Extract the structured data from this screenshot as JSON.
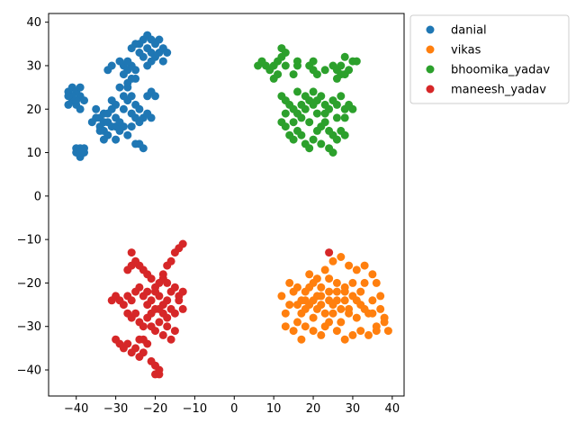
{
  "chart_data": {
    "type": "scatter",
    "title": "",
    "xlabel": "",
    "ylabel": "",
    "xlim": [
      -47,
      43
    ],
    "ylim": [
      -46,
      42
    ],
    "xticks": [
      -40,
      -30,
      -20,
      -10,
      0,
      10,
      20,
      30,
      40
    ],
    "yticks": [
      -40,
      -30,
      -20,
      -10,
      0,
      10,
      20,
      30,
      40
    ],
    "grid": false,
    "legend_position": "outside-top-right",
    "series": [
      {
        "name": "danial",
        "color": "#1f77b4",
        "points": [
          [
            -42,
            24
          ],
          [
            -41,
            22
          ],
          [
            -40,
            21
          ],
          [
            -39,
            23
          ],
          [
            -41,
            25
          ],
          [
            -40,
            24
          ],
          [
            -42,
            21
          ],
          [
            -39,
            20
          ],
          [
            -40,
            22
          ],
          [
            -41,
            23
          ],
          [
            -39,
            25
          ],
          [
            -38,
            22
          ],
          [
            -42,
            23
          ],
          [
            -40,
            10
          ],
          [
            -39,
            11
          ],
          [
            -38,
            10
          ],
          [
            -39,
            9
          ],
          [
            -40,
            11
          ],
          [
            -38,
            11
          ],
          [
            -39,
            10
          ],
          [
            -36,
            17
          ],
          [
            -35,
            18
          ],
          [
            -34,
            16
          ],
          [
            -33,
            15
          ],
          [
            -35,
            20
          ],
          [
            -34,
            18
          ],
          [
            -32,
            14
          ],
          [
            -31,
            16
          ],
          [
            -33,
            17
          ],
          [
            -30,
            18
          ],
          [
            -29,
            15
          ],
          [
            -31,
            20
          ],
          [
            -33,
            19
          ],
          [
            -34,
            15
          ],
          [
            -32,
            17
          ],
          [
            -30,
            16
          ],
          [
            -32,
            19
          ],
          [
            -29,
            17
          ],
          [
            -31,
            22
          ],
          [
            -30,
            21
          ],
          [
            -28,
            20
          ],
          [
            -27,
            22
          ],
          [
            -26,
            23
          ],
          [
            -25,
            21
          ],
          [
            -28,
            23
          ],
          [
            -29,
            25
          ],
          [
            -27,
            25
          ],
          [
            -26,
            19
          ],
          [
            -25,
            18
          ],
          [
            -24,
            17
          ],
          [
            -23,
            18
          ],
          [
            -22,
            19
          ],
          [
            -24,
            20
          ],
          [
            -21,
            18
          ],
          [
            -22,
            23
          ],
          [
            -21,
            24
          ],
          [
            -20,
            23
          ],
          [
            -28,
            30
          ],
          [
            -27,
            29
          ],
          [
            -26,
            30
          ],
          [
            -25,
            29
          ],
          [
            -27,
            31
          ],
          [
            -28,
            28
          ],
          [
            -26,
            27
          ],
          [
            -25,
            27
          ],
          [
            -27,
            26
          ],
          [
            -32,
            29
          ],
          [
            -31,
            30
          ],
          [
            -29,
            31
          ],
          [
            -24,
            35
          ],
          [
            -23,
            36
          ],
          [
            -22,
            34
          ],
          [
            -21,
            33
          ],
          [
            -20,
            35
          ],
          [
            -19,
            33
          ],
          [
            -18,
            34
          ],
          [
            -17,
            33
          ],
          [
            -22,
            37
          ],
          [
            -21,
            36
          ],
          [
            -20,
            32
          ],
          [
            -19,
            36
          ],
          [
            -18,
            31
          ],
          [
            -24,
            33
          ],
          [
            -23,
            32
          ],
          [
            -25,
            35
          ],
          [
            -26,
            34
          ],
          [
            -22,
            30
          ],
          [
            -21,
            31
          ],
          [
            -24,
            12
          ],
          [
            -23,
            11
          ],
          [
            -25,
            12
          ],
          [
            -27,
            14
          ],
          [
            -28,
            16
          ],
          [
            -26,
            16
          ],
          [
            -30,
            13
          ],
          [
            -33,
            13
          ]
        ]
      },
      {
        "name": "vikas",
        "color": "#ff7f0e",
        "points": [
          [
            12,
            -23
          ],
          [
            13,
            -27
          ],
          [
            14,
            -25
          ],
          [
            15,
            -22
          ],
          [
            16,
            -29
          ],
          [
            17,
            -24
          ],
          [
            18,
            -26
          ],
          [
            19,
            -21
          ],
          [
            20,
            -28
          ],
          [
            21,
            -23
          ],
          [
            22,
            -25
          ],
          [
            23,
            -30
          ],
          [
            24,
            -22
          ],
          [
            25,
            -27
          ],
          [
            26,
            -24
          ],
          [
            27,
            -29
          ],
          [
            28,
            -21
          ],
          [
            29,
            -26
          ],
          [
            30,
            -23
          ],
          [
            31,
            -28
          ],
          [
            32,
            -25
          ],
          [
            33,
            -20
          ],
          [
            34,
            -27
          ],
          [
            35,
            -24
          ],
          [
            36,
            -30
          ],
          [
            37,
            -26
          ],
          [
            38,
            -29
          ],
          [
            39,
            -31
          ],
          [
            15,
            -31
          ],
          [
            17,
            -33
          ],
          [
            19,
            -18
          ],
          [
            21,
            -19
          ],
          [
            23,
            -17
          ],
          [
            25,
            -15
          ],
          [
            27,
            -14
          ],
          [
            29,
            -16
          ],
          [
            31,
            -17
          ],
          [
            33,
            -16
          ],
          [
            35,
            -18
          ],
          [
            36,
            -20
          ],
          [
            18,
            -30
          ],
          [
            20,
            -31
          ],
          [
            22,
            -32
          ],
          [
            24,
            -29
          ],
          [
            26,
            -31
          ],
          [
            28,
            -33
          ],
          [
            30,
            -32
          ],
          [
            32,
            -31
          ],
          [
            34,
            -32
          ],
          [
            36,
            -31
          ],
          [
            14,
            -20
          ],
          [
            16,
            -21
          ],
          [
            18,
            -22
          ],
          [
            20,
            -20
          ],
          [
            22,
            -21
          ],
          [
            24,
            -19
          ],
          [
            26,
            -20
          ],
          [
            28,
            -22
          ],
          [
            30,
            -20
          ],
          [
            32,
            -22
          ],
          [
            17,
            -27
          ],
          [
            19,
            -25
          ],
          [
            21,
            -26
          ],
          [
            23,
            -27
          ],
          [
            25,
            -25
          ],
          [
            27,
            -26
          ],
          [
            29,
            -27
          ],
          [
            31,
            -24
          ],
          [
            33,
            -26
          ],
          [
            35,
            -27
          ],
          [
            16,
            -25
          ],
          [
            18,
            -24
          ],
          [
            20,
            -24
          ],
          [
            22,
            -23
          ],
          [
            24,
            -24
          ],
          [
            26,
            -22
          ],
          [
            28,
            -24
          ],
          [
            13,
            -30
          ],
          [
            37,
            -23
          ],
          [
            38,
            -28
          ]
        ]
      },
      {
        "name": "bhoomika_yadav",
        "color": "#2ca02c",
        "points": [
          [
            6,
            30
          ],
          [
            7,
            31
          ],
          [
            8,
            30
          ],
          [
            9,
            29
          ],
          [
            10,
            30
          ],
          [
            11,
            31
          ],
          [
            12,
            32
          ],
          [
            13,
            33
          ],
          [
            12,
            34
          ],
          [
            11,
            28
          ],
          [
            10,
            27
          ],
          [
            13,
            30
          ],
          [
            16,
            30
          ],
          [
            16,
            31
          ],
          [
            15,
            28
          ],
          [
            19,
            30
          ],
          [
            20,
            29
          ],
          [
            20,
            31
          ],
          [
            21,
            28
          ],
          [
            23,
            29
          ],
          [
            25,
            30
          ],
          [
            26,
            29
          ],
          [
            27,
            30
          ],
          [
            28,
            28
          ],
          [
            28,
            32
          ],
          [
            29,
            29
          ],
          [
            30,
            31
          ],
          [
            31,
            31
          ],
          [
            26,
            27
          ],
          [
            27,
            28
          ],
          [
            12,
            23
          ],
          [
            13,
            22
          ],
          [
            14,
            21
          ],
          [
            15,
            20
          ],
          [
            16,
            19
          ],
          [
            17,
            21
          ],
          [
            18,
            23
          ],
          [
            19,
            22
          ],
          [
            20,
            24
          ],
          [
            21,
            22
          ],
          [
            22,
            23
          ],
          [
            23,
            21
          ],
          [
            24,
            20
          ],
          [
            25,
            22
          ],
          [
            26,
            21
          ],
          [
            27,
            23
          ],
          [
            28,
            20
          ],
          [
            29,
            21
          ],
          [
            30,
            20
          ],
          [
            28,
            18
          ],
          [
            12,
            17
          ],
          [
            13,
            16
          ],
          [
            14,
            14
          ],
          [
            15,
            13
          ],
          [
            16,
            15
          ],
          [
            17,
            14
          ],
          [
            18,
            12
          ],
          [
            19,
            11
          ],
          [
            20,
            13
          ],
          [
            21,
            15
          ],
          [
            22,
            16
          ],
          [
            23,
            17
          ],
          [
            24,
            15
          ],
          [
            25,
            14
          ],
          [
            26,
            13
          ],
          [
            24,
            11
          ],
          [
            25,
            10
          ],
          [
            26,
            18
          ],
          [
            27,
            15
          ],
          [
            28,
            14
          ],
          [
            13,
            19
          ],
          [
            15,
            17
          ],
          [
            17,
            18
          ],
          [
            19,
            17
          ],
          [
            21,
            19
          ],
          [
            23,
            19
          ],
          [
            18,
            20
          ],
          [
            16,
            24
          ],
          [
            20,
            21
          ],
          [
            22,
            12
          ]
        ]
      },
      {
        "name": "maneesh_yadav",
        "color": "#d62728",
        "points": [
          [
            -31,
            -24
          ],
          [
            -30,
            -23
          ],
          [
            -29,
            -24
          ],
          [
            -28,
            -25
          ],
          [
            -27,
            -23
          ],
          [
            -26,
            -24
          ],
          [
            -25,
            -22
          ],
          [
            -24,
            -21
          ],
          [
            -23,
            -23
          ],
          [
            -22,
            -25
          ],
          [
            -21,
            -24
          ],
          [
            -20,
            -22
          ],
          [
            -19,
            -23
          ],
          [
            -18,
            -25
          ],
          [
            -17,
            -24
          ],
          [
            -16,
            -22
          ],
          [
            -15,
            -21
          ],
          [
            -14,
            -23
          ],
          [
            -13,
            -22
          ],
          [
            -14,
            -12
          ],
          [
            -13,
            -11
          ],
          [
            -15,
            -13
          ],
          [
            -16,
            -15
          ],
          [
            -17,
            -16
          ],
          [
            -18,
            -18
          ],
          [
            -19,
            -20
          ],
          [
            -20,
            -21
          ],
          [
            -21,
            -19
          ],
          [
            -22,
            -18
          ],
          [
            -23,
            -17
          ],
          [
            -24,
            -16
          ],
          [
            -25,
            -15
          ],
          [
            -26,
            -16
          ],
          [
            -27,
            -17
          ],
          [
            -26,
            -13
          ],
          [
            -27,
            -27
          ],
          [
            -26,
            -28
          ],
          [
            -25,
            -27
          ],
          [
            -24,
            -29
          ],
          [
            -23,
            -30
          ],
          [
            -22,
            -28
          ],
          [
            -21,
            -30
          ],
          [
            -20,
            -31
          ],
          [
            -19,
            -29
          ],
          [
            -18,
            -32
          ],
          [
            -17,
            -30
          ],
          [
            -16,
            -33
          ],
          [
            -15,
            -31
          ],
          [
            -20,
            -26
          ],
          [
            -18,
            -27
          ],
          [
            -17,
            -28
          ],
          [
            -30,
            -33
          ],
          [
            -29,
            -34
          ],
          [
            -28,
            -35
          ],
          [
            -27,
            -34
          ],
          [
            -26,
            -36
          ],
          [
            -25,
            -35
          ],
          [
            -24,
            -37
          ],
          [
            -23,
            -36
          ],
          [
            -22,
            -34
          ],
          [
            -21,
            -38
          ],
          [
            -20,
            -39
          ],
          [
            -19,
            -40
          ],
          [
            -20,
            -41
          ],
          [
            -19,
            -41
          ],
          [
            -24,
            -33
          ],
          [
            -23,
            -33
          ],
          [
            -18,
            -19
          ],
          [
            -15,
            -27
          ],
          [
            -13,
            -26
          ],
          [
            -19,
            -26
          ],
          [
            -21,
            -27
          ],
          [
            -17,
            -20
          ],
          [
            -16,
            -26
          ],
          [
            -14,
            -24
          ],
          [
            -22,
            -22
          ],
          [
            24,
            -13
          ]
        ]
      }
    ]
  }
}
